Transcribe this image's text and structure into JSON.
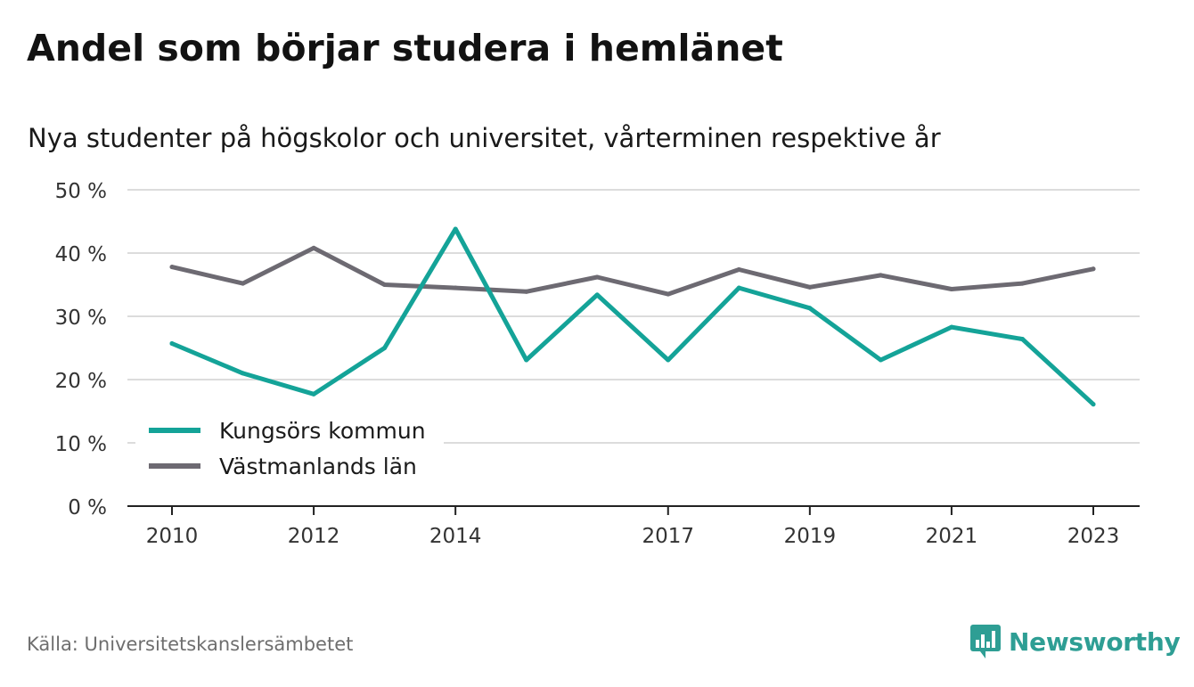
{
  "header": {
    "title": "Andel som börjar studera i hemlänet",
    "subtitle": "Nya studenter på högskolor och universitet, vårterminen respektive år"
  },
  "footer": {
    "source": "Källa: Universitetskanslersämbetet",
    "brand": "Newsworthy"
  },
  "colors": {
    "kungsor": "#14a398",
    "vastmanland": "#6d6a72",
    "grid": "#dcdcdc",
    "axis": "#222222",
    "brand": "#2e9e94"
  },
  "chart_data": {
    "type": "line",
    "x": [
      2010,
      2011,
      2012,
      2013,
      2014,
      2015,
      2016,
      2017,
      2018,
      2019,
      2020,
      2021,
      2022,
      2023
    ],
    "x_tick_labels": [
      "2010",
      "2012",
      "2014",
      "2017",
      "2019",
      "2021",
      "2023"
    ],
    "y_ticks": [
      0,
      10,
      20,
      30,
      40,
      50
    ],
    "y_tick_labels": [
      "0 %",
      "10 %",
      "20 %",
      "30 %",
      "40 %",
      "50 %"
    ],
    "ylim": [
      0,
      50
    ],
    "xlim": [
      2010,
      2023
    ],
    "grid": true,
    "legend_position": "bottom-left",
    "series": [
      {
        "name": "Kungsörs kommun",
        "color_key": "kungsor",
        "values": [
          25.7,
          21.0,
          17.7,
          25.0,
          43.8,
          23.1,
          33.4,
          23.1,
          34.5,
          31.3,
          23.1,
          28.3,
          26.4,
          16.1
        ]
      },
      {
        "name": "Västmanlands län",
        "color_key": "vastmanland",
        "values": [
          37.8,
          35.2,
          40.8,
          35.0,
          34.5,
          33.9,
          36.2,
          33.5,
          37.4,
          34.6,
          36.5,
          34.3,
          35.2,
          37.5
        ]
      }
    ]
  }
}
